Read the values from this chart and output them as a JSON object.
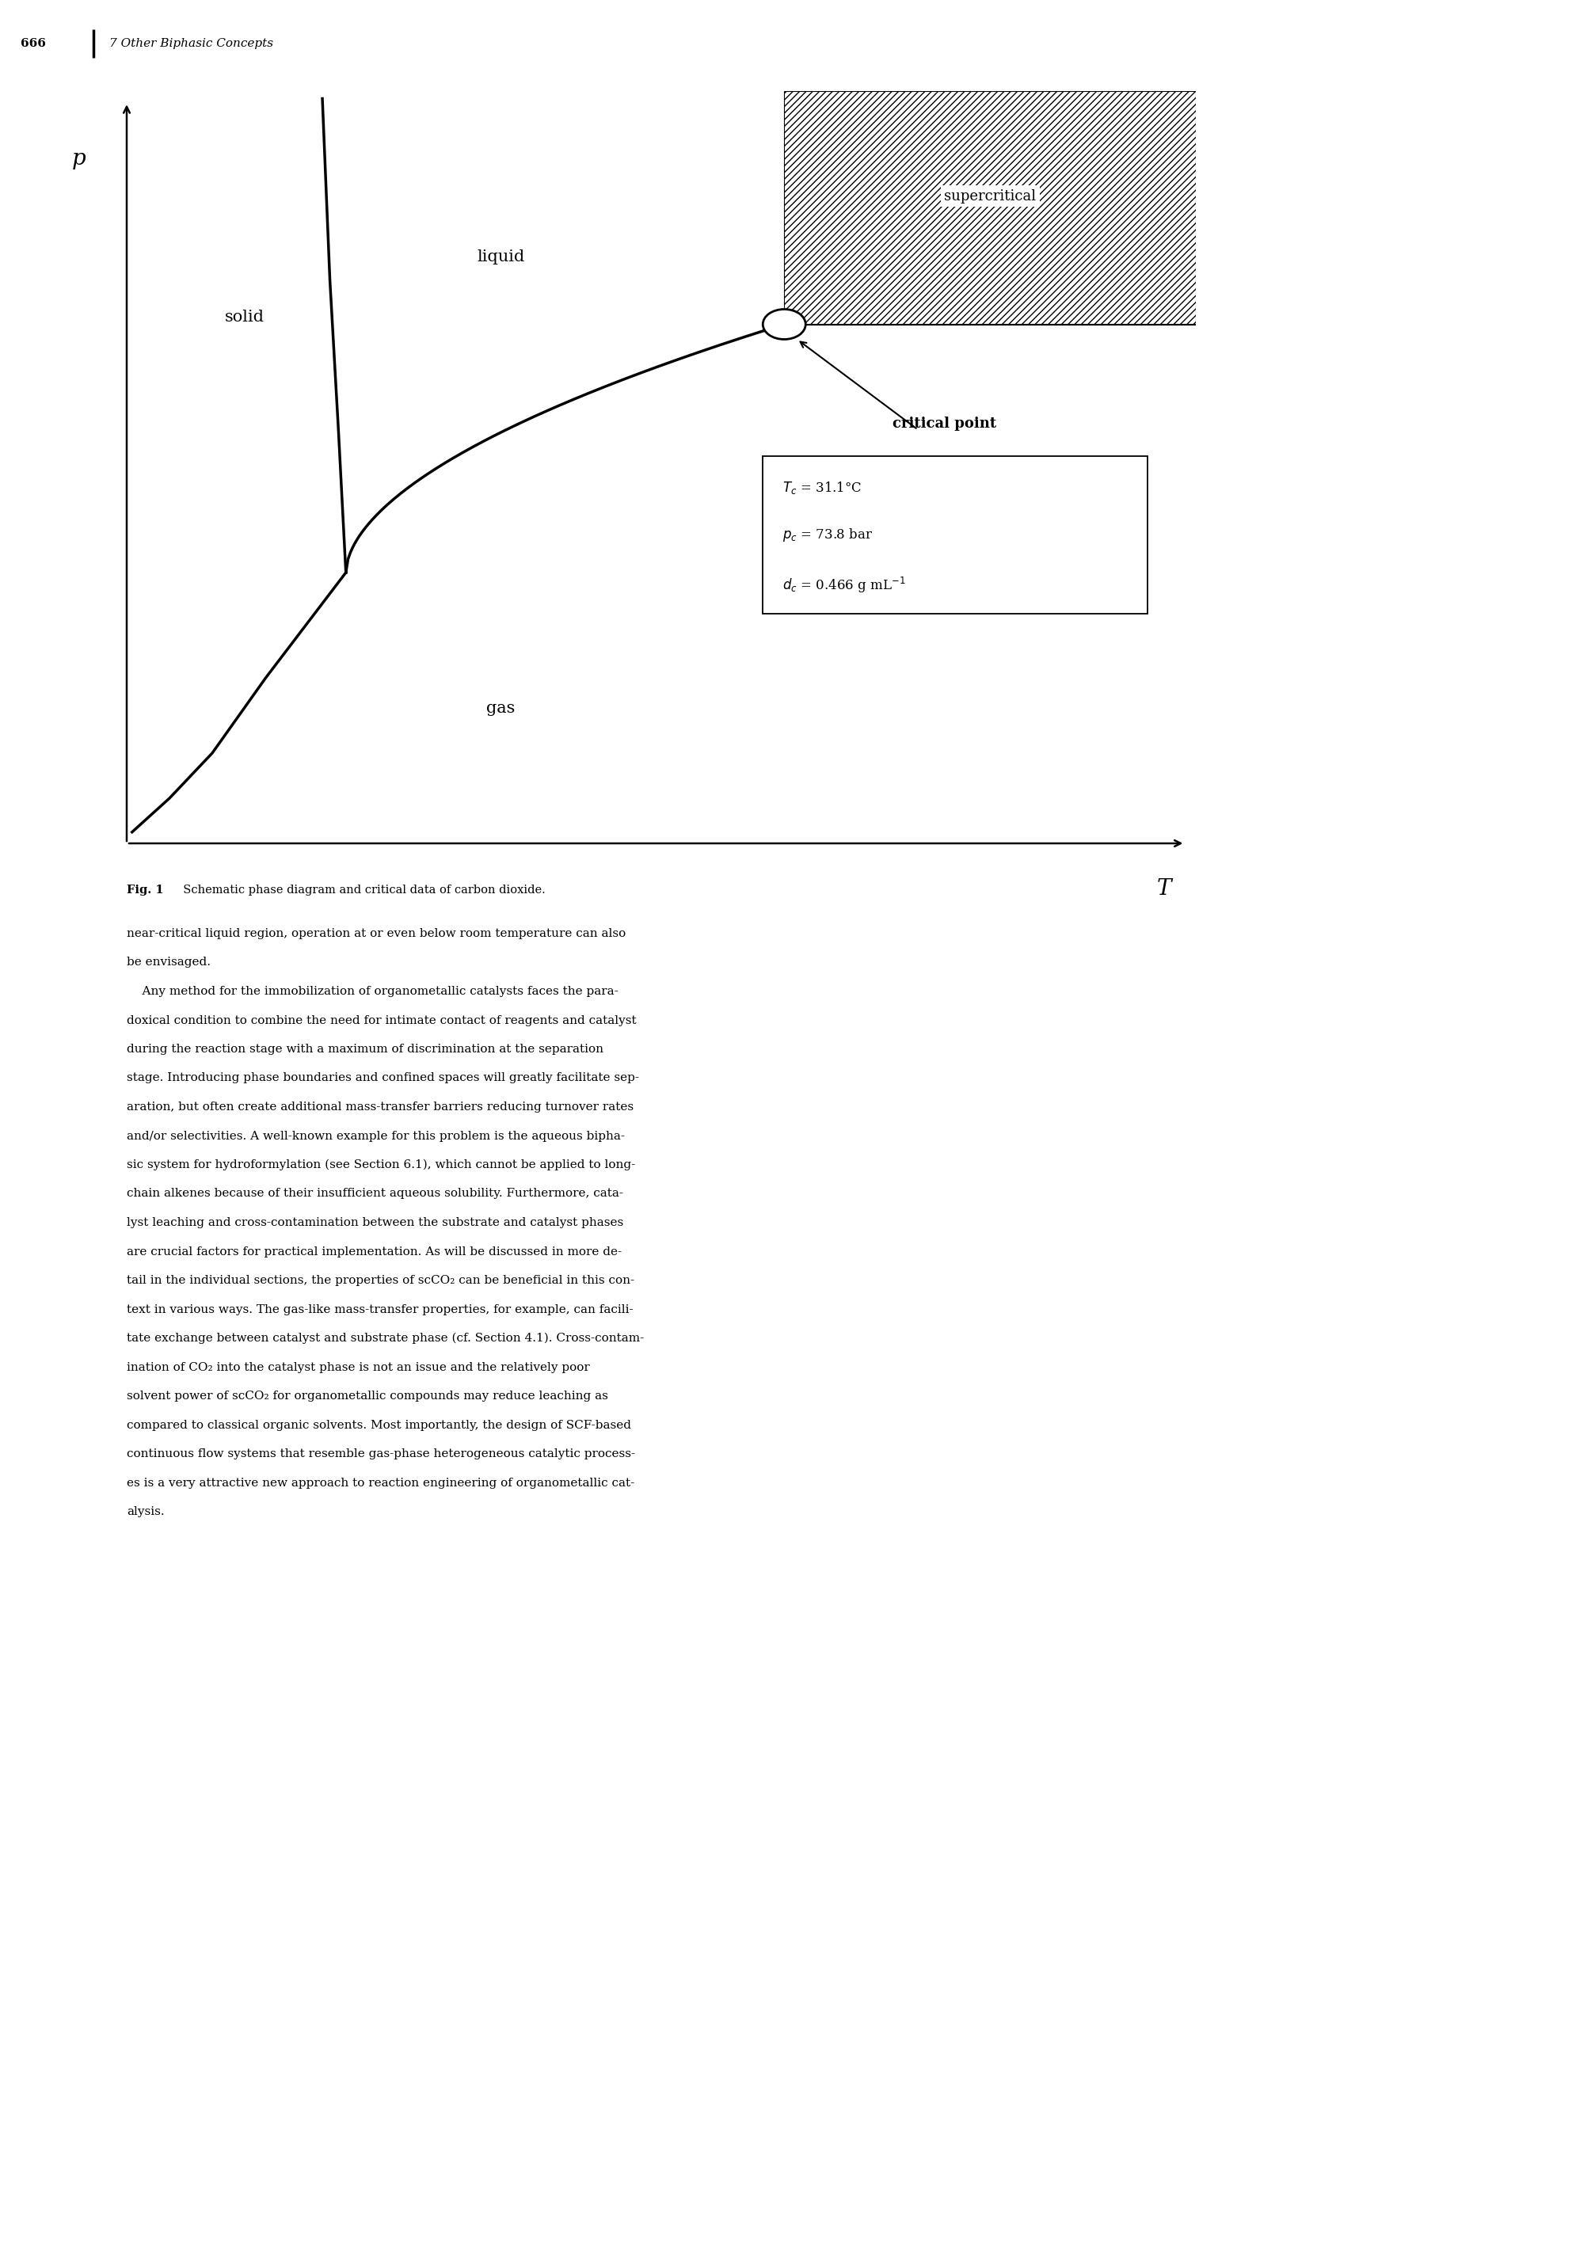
{
  "page_width": 20.09,
  "page_height": 28.35,
  "background_color": "#ffffff",
  "header_text": "666",
  "header_chapter": "7 Other Biphasic Concepts",
  "fig_caption_bold": "Fig. 1",
  "fig_caption_rest": "  Schematic phase diagram and critical data of carbon dioxide.",
  "body_paragraphs": [
    "near-critical liquid region, operation at or even below room temperature can also be envisaged.",
    "    Any method for the immobilization of organometallic catalysts faces the paradoxical condition to combine the need for intimate contact of reagents and catalyst during the reaction stage with a maximum of discrimination at the separation stage. Introducing phase boundaries and confined spaces will greatly facilitate separation, but often create additional mass-transfer barriers reducing turnover rates and/or selectivities. A well-known example for this problem is the aqueous biphasic system for hydroformylation (see Section 6.1), which cannot be applied to long-chain alkenes because of their insufficient aqueous solubility. Furthermore, catalyst leaching and cross-contamination between the substrate and catalyst phases are crucial factors for practical implementation. As will be discussed in more detail in the individual sections, the properties of scCO2 can be beneficial in this context in various ways. The gas-like mass-transfer properties, for example, can facilitate exchange between catalyst and substrate phase (cf. Section 4.1). Cross-contamination of CO2 into the catalyst phase is not an issue and the relatively poor solvent power of scCO2 for organometallic compounds may reduce leaching as compared to classical organic solvents. Most importantly, the design of SCF-based continuous flow systems that resemble gas-phase heterogeneous catalytic processes is a very attractive new approach to reaction engineering of organometallic catalysis."
  ],
  "supercritical_label": "supercritical",
  "liquid_label": "liquid",
  "solid_label": "solid",
  "gas_label": "gas",
  "critical_point_label": "critical point",
  "p_label": "p",
  "T_label": "T",
  "box_line1": "$T_c$ = 31.1°C",
  "box_line2": "$p_c$ = 73.8 bar",
  "box_line3": "$d_c$ = 0.466 g mL$^{-1}$"
}
